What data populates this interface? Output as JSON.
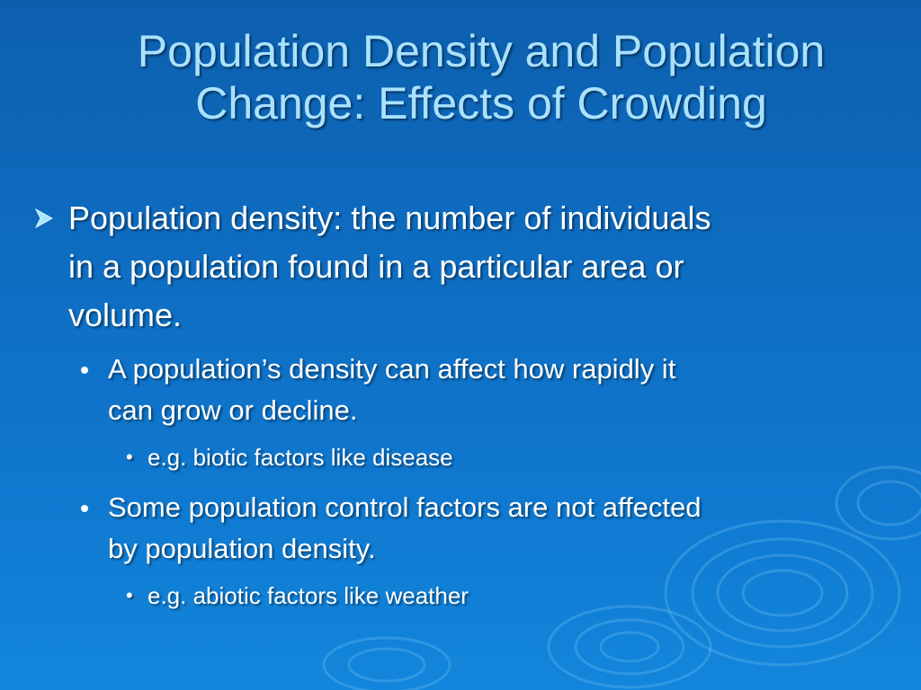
{
  "slide": {
    "title_lines": [
      "Population Density and Population",
      "Change: Effects of Crowding"
    ],
    "bullet1": {
      "lines": [
        "Population density: the number of individuals",
        "in a population found in a particular area or",
        "volume."
      ]
    },
    "sub1": {
      "lines": [
        "A population’s density can affect how rapidly it",
        "can grow or decline."
      ]
    },
    "sub1_example": {
      "marker": "•",
      "text": "e.g. biotic factors like disease"
    },
    "sub2": {
      "lines": [
        "Some population control factors are not affected",
        "by population density."
      ]
    },
    "sub2_example": {
      "marker": "•",
      "text": "e.g. abiotic factors like weather"
    },
    "colors": {
      "title": "#a9e2ff",
      "body_text": "#ffffff",
      "background_top": "#0d5fae",
      "background_bottom": "#1286dc",
      "arrow_bullet": "#a8e6ff"
    },
    "icons": {
      "level1_marker": "arrow-bullet-icon",
      "level2_marker": "dot-bullet-icon"
    }
  }
}
